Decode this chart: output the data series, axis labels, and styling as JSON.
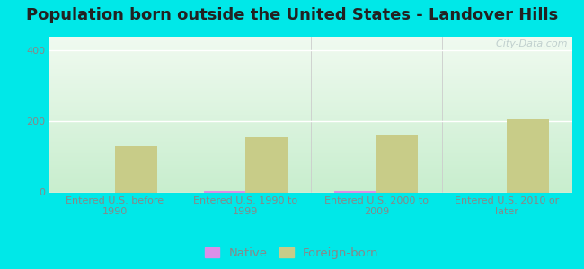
{
  "title": "Population born outside the United States - Landover Hills",
  "categories": [
    "Entered U.S. before\n1990",
    "Entered U.S. 1990 to\n1999",
    "Entered U.S. 2000 to\n2009",
    "Entered U.S. 2010 or\nlater"
  ],
  "native_values": [
    0,
    5,
    5,
    0
  ],
  "foreign_born_values": [
    130,
    155,
    160,
    205
  ],
  "native_color": "#da8fe8",
  "foreign_born_color": "#c8cc88",
  "bg_top_color": "#f0faf0",
  "bg_bottom_color": "#c8eece",
  "outer_background": "#00e8e8",
  "ylim": [
    0,
    440
  ],
  "yticks": [
    0,
    200,
    400
  ],
  "bar_width": 0.32,
  "title_fontsize": 13,
  "tick_fontsize": 8,
  "legend_fontsize": 9.5,
  "watermark_text": "  City-Data.com",
  "grid_color": "#ffffff",
  "tick_color": "#888888",
  "label_color": "#888888"
}
